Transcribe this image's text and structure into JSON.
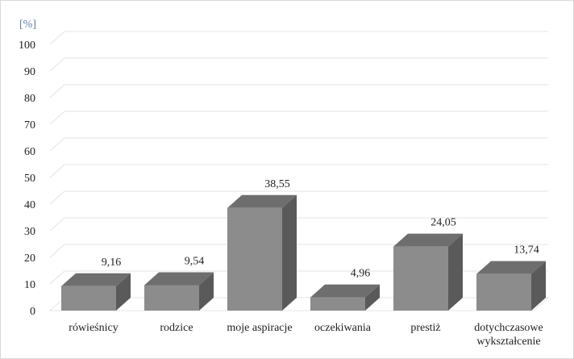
{
  "chart_data": {
    "type": "bar",
    "style": "3d-column",
    "ylabel": "[%]",
    "ylim": [
      0,
      100
    ],
    "ystep": 10,
    "grid": true,
    "categories": [
      "rówieśnicy",
      "rodzice",
      "moje aspiracje",
      "oczekiwania",
      "prestiż",
      "dotychczasowe wykształcenie"
    ],
    "category_lines": [
      [
        "rówieśnicy"
      ],
      [
        "rodzice"
      ],
      [
        "moje aspiracje"
      ],
      [
        "oczekiwania"
      ],
      [
        "prestiż"
      ],
      [
        "dotychczasowe",
        "wykształcenie"
      ]
    ],
    "values": [
      9.16,
      9.54,
      38.55,
      4.96,
      24.05,
      13.74
    ],
    "value_labels": [
      "9,16",
      "9,54",
      "38,55",
      "4,96",
      "24,05",
      "13,74"
    ],
    "colors": {
      "front": "#8c8c8c",
      "top": "#6e6e6e",
      "side": "#5a5a5a",
      "grid": "#e3e3e3",
      "unit": "#5f7fa3"
    }
  }
}
